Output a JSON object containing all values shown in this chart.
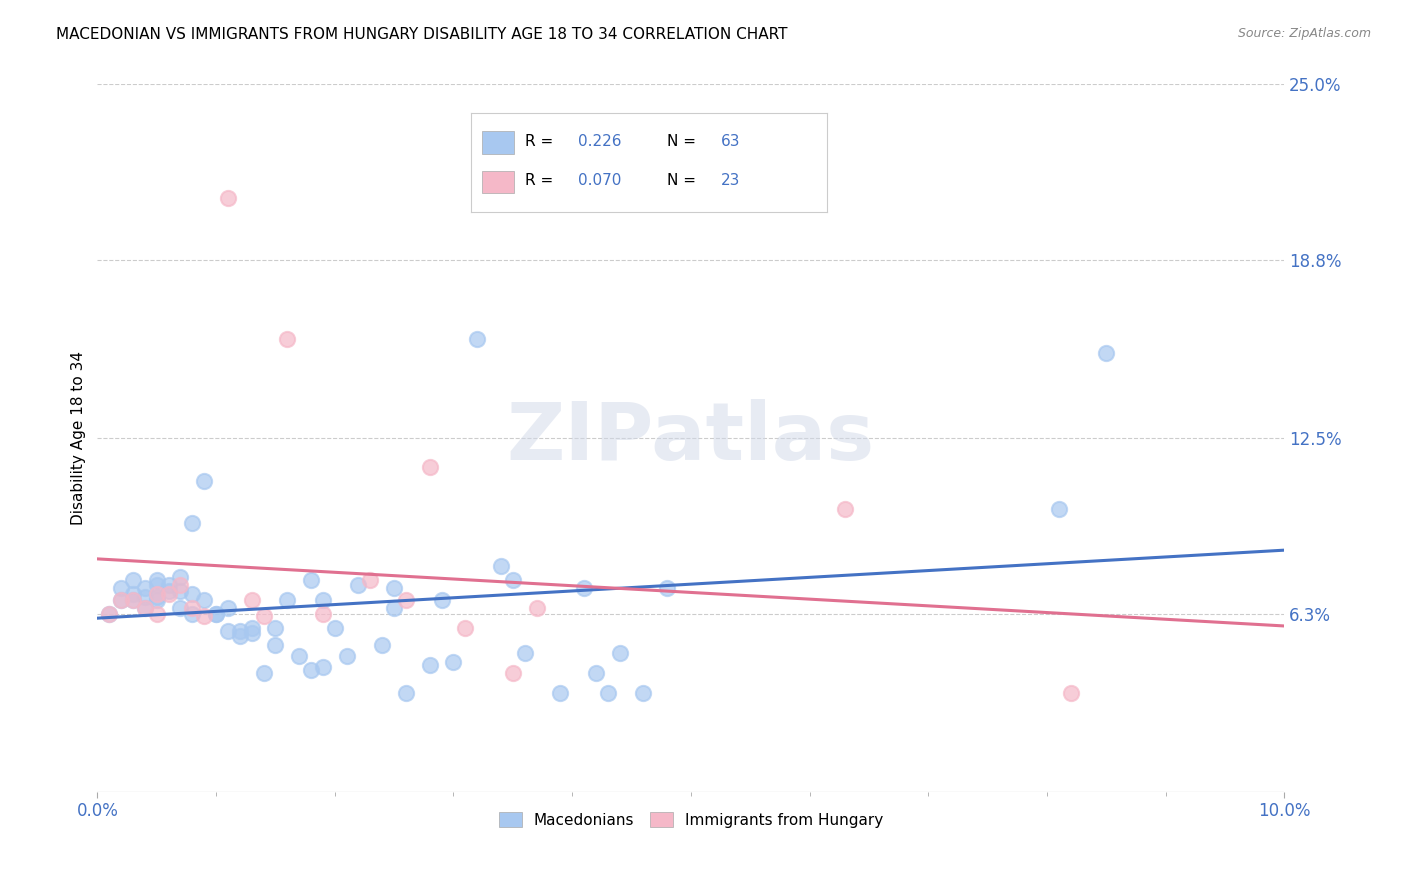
{
  "title": "MACEDONIAN VS IMMIGRANTS FROM HUNGARY DISABILITY AGE 18 TO 34 CORRELATION CHART",
  "source": "Source: ZipAtlas.com",
  "ylabel_label": "Disability Age 18 to 34",
  "xlim": [
    0.0,
    0.1
  ],
  "ylim": [
    0.0,
    0.25
  ],
  "ytick_positions": [
    0.063,
    0.125,
    0.188,
    0.25
  ],
  "ytick_labels": [
    "6.3%",
    "12.5%",
    "18.8%",
    "25.0%"
  ],
  "xtick_positions": [
    0.0,
    0.1
  ],
  "xtick_labels": [
    "0.0%",
    "10.0%"
  ],
  "R_macedonian": "0.226",
  "N_macedonian": "63",
  "R_hungary": "0.070",
  "N_hungary": "23",
  "color_macedonian": "#a8c8f0",
  "color_hungary": "#f5b8c8",
  "color_macedonian_line": "#4472c4",
  "color_hungary_line": "#e07090",
  "color_text_blue": "#4472c4",
  "macedonian_x": [
    0.001,
    0.002,
    0.002,
    0.003,
    0.003,
    0.003,
    0.004,
    0.004,
    0.004,
    0.005,
    0.005,
    0.005,
    0.005,
    0.006,
    0.006,
    0.007,
    0.007,
    0.007,
    0.008,
    0.008,
    0.008,
    0.009,
    0.009,
    0.01,
    0.01,
    0.011,
    0.011,
    0.012,
    0.012,
    0.013,
    0.013,
    0.014,
    0.015,
    0.015,
    0.016,
    0.017,
    0.018,
    0.018,
    0.019,
    0.019,
    0.02,
    0.021,
    0.022,
    0.024,
    0.025,
    0.025,
    0.026,
    0.028,
    0.029,
    0.03,
    0.032,
    0.034,
    0.035,
    0.036,
    0.039,
    0.041,
    0.042,
    0.043,
    0.044,
    0.046,
    0.048,
    0.081,
    0.085
  ],
  "macedonian_y": [
    0.063,
    0.072,
    0.068,
    0.075,
    0.07,
    0.068,
    0.072,
    0.069,
    0.065,
    0.069,
    0.073,
    0.068,
    0.075,
    0.071,
    0.073,
    0.065,
    0.076,
    0.071,
    0.063,
    0.07,
    0.095,
    0.11,
    0.068,
    0.063,
    0.063,
    0.065,
    0.057,
    0.055,
    0.057,
    0.058,
    0.056,
    0.042,
    0.058,
    0.052,
    0.068,
    0.048,
    0.043,
    0.075,
    0.068,
    0.044,
    0.058,
    0.048,
    0.073,
    0.052,
    0.072,
    0.065,
    0.035,
    0.045,
    0.068,
    0.046,
    0.16,
    0.08,
    0.075,
    0.049,
    0.035,
    0.072,
    0.042,
    0.035,
    0.049,
    0.035,
    0.072,
    0.1,
    0.155
  ],
  "hungary_x": [
    0.001,
    0.002,
    0.003,
    0.004,
    0.005,
    0.005,
    0.006,
    0.007,
    0.008,
    0.009,
    0.011,
    0.013,
    0.014,
    0.016,
    0.019,
    0.023,
    0.026,
    0.028,
    0.031,
    0.035,
    0.037,
    0.063,
    0.082
  ],
  "hungary_y": [
    0.063,
    0.068,
    0.068,
    0.065,
    0.07,
    0.063,
    0.07,
    0.073,
    0.065,
    0.062,
    0.21,
    0.068,
    0.062,
    0.16,
    0.063,
    0.075,
    0.068,
    0.115,
    0.058,
    0.042,
    0.065,
    0.1,
    0.035
  ],
  "watermark": "ZIPatlas"
}
